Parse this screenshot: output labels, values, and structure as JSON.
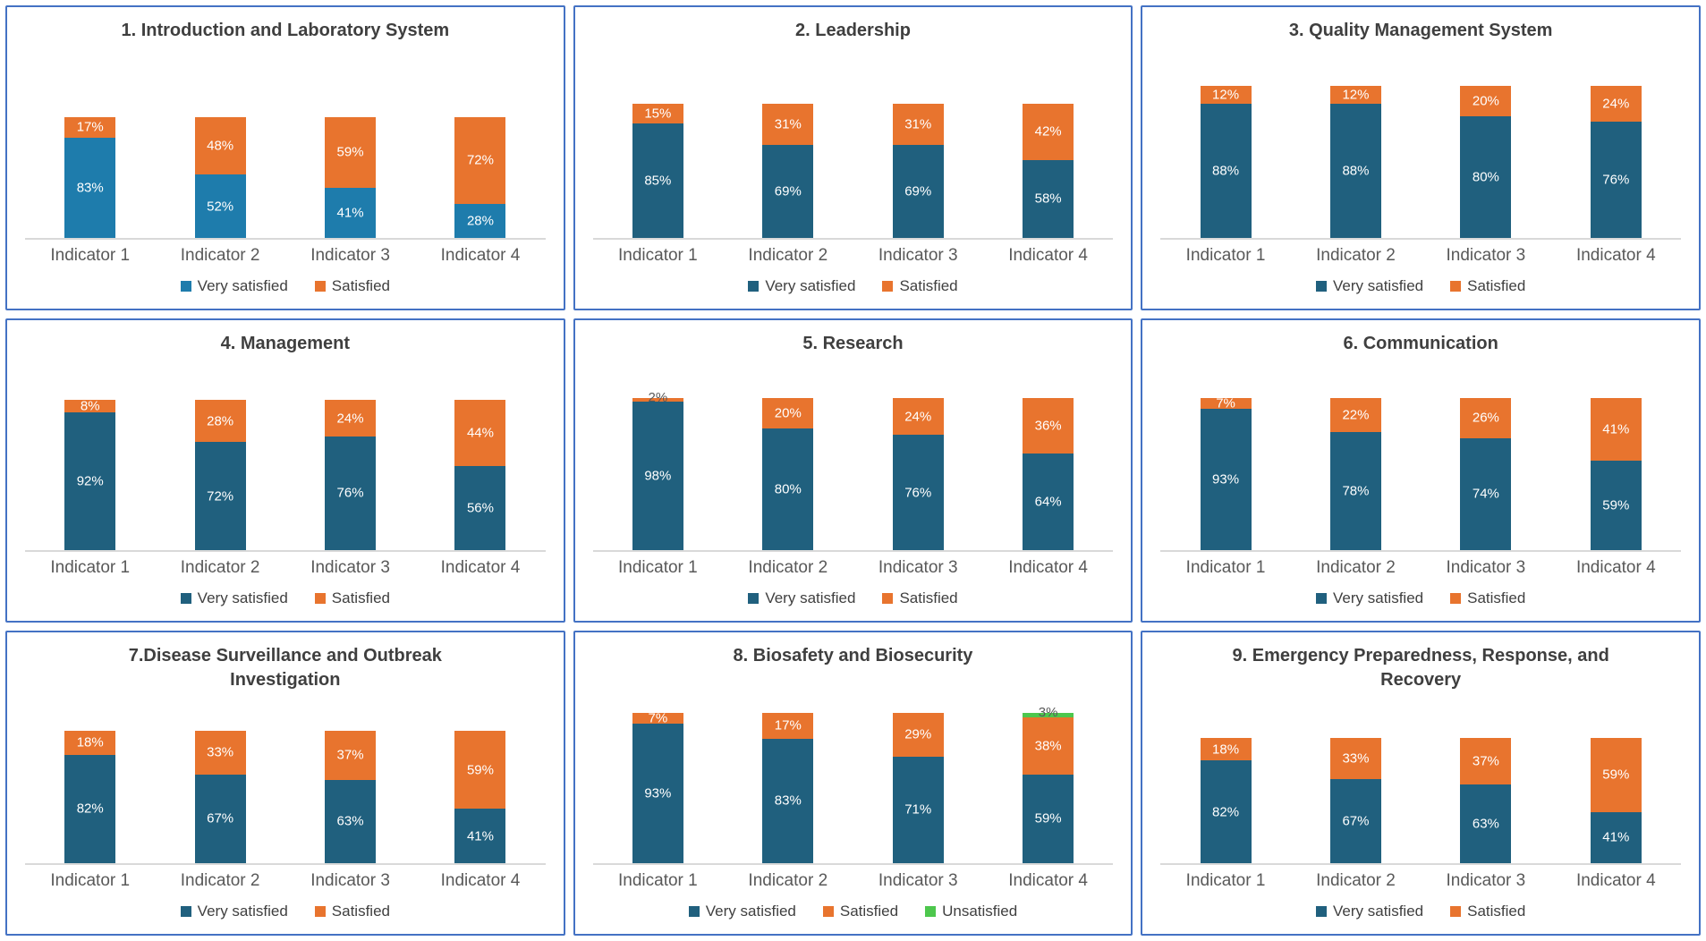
{
  "figure": {
    "description": "Satisfaction survey results per module, four indicators each",
    "legend_labels": [
      "Very satisfied",
      "Satisfied",
      "Unsatisfied"
    ],
    "colors": {
      "panel_border": "#4472C4",
      "very_satisfied_chart1": "#1E7CAC",
      "very_satisfied": "#20607E",
      "satisfied": "#E8742E",
      "unsatisfied": "#4DC74D",
      "title_text": "#3F3F3F",
      "axis_text": "#595959",
      "axis_line": "#D9D9D9",
      "data_label_light": "#FFFFFF",
      "data_label_dark": "#595959"
    }
  },
  "chart_data": [
    {
      "type": "bar",
      "stacked": true,
      "title": "1. Introduction and Laboratory System",
      "categories": [
        "Indicator 1",
        "Indicator 2",
        "Indicator 3",
        "Indicator 4"
      ],
      "series": [
        {
          "name": "Very satisfied",
          "color": "#1E7CAC",
          "values": [
            83,
            52,
            41,
            28
          ]
        },
        {
          "name": "Satisfied",
          "color": "#E8742E",
          "values": [
            17,
            48,
            59,
            72
          ]
        }
      ],
      "ylim": [
        0,
        100
      ],
      "legend_position": "bottom",
      "data_label_format": "percent",
      "grid": false
    },
    {
      "type": "bar",
      "stacked": true,
      "title": "2. Leadership",
      "categories": [
        "Indicator 1",
        "Indicator 2",
        "Indicator 3",
        "Indicator 4"
      ],
      "series": [
        {
          "name": "Very satisfied",
          "color": "#20607E",
          "values": [
            85,
            69,
            69,
            58
          ]
        },
        {
          "name": "Satisfied",
          "color": "#E8742E",
          "values": [
            15,
            31,
            31,
            42
          ]
        }
      ],
      "ylim": [
        0,
        100
      ],
      "legend_position": "bottom",
      "data_label_format": "percent",
      "grid": false
    },
    {
      "type": "bar",
      "stacked": true,
      "title": "3. Quality Management System",
      "categories": [
        "Indicator 1",
        "Indicator 2",
        "Indicator 3",
        "Indicator 4"
      ],
      "series": [
        {
          "name": "Very satisfied",
          "color": "#20607E",
          "values": [
            88,
            88,
            80,
            76
          ]
        },
        {
          "name": "Satisfied",
          "color": "#E8742E",
          "values": [
            12,
            12,
            20,
            24
          ]
        }
      ],
      "ylim": [
        0,
        100
      ],
      "legend_position": "bottom",
      "data_label_format": "percent",
      "grid": false
    },
    {
      "type": "bar",
      "stacked": true,
      "title": "4. Management",
      "categories": [
        "Indicator 1",
        "Indicator 2",
        "Indicator 3",
        "Indicator 4"
      ],
      "series": [
        {
          "name": "Very satisfied",
          "color": "#20607E",
          "values": [
            92,
            72,
            76,
            56
          ]
        },
        {
          "name": "Satisfied",
          "color": "#E8742E",
          "values": [
            8,
            28,
            24,
            44
          ]
        }
      ],
      "ylim": [
        0,
        100
      ],
      "legend_position": "bottom",
      "data_label_format": "percent",
      "grid": false
    },
    {
      "type": "bar",
      "stacked": true,
      "title": "5. Research",
      "categories": [
        "Indicator 1",
        "Indicator 2",
        "Indicator 3",
        "Indicator 4"
      ],
      "series": [
        {
          "name": "Very satisfied",
          "color": "#20607E",
          "values": [
            98,
            80,
            76,
            64
          ]
        },
        {
          "name": "Satisfied",
          "color": "#E8742E",
          "values": [
            2,
            20,
            24,
            36
          ]
        }
      ],
      "ylim": [
        0,
        100
      ],
      "legend_position": "bottom",
      "data_label_format": "percent",
      "grid": false
    },
    {
      "type": "bar",
      "stacked": true,
      "title": "6. Communication",
      "categories": [
        "Indicator 1",
        "Indicator 2",
        "Indicator 3",
        "Indicator 4"
      ],
      "series": [
        {
          "name": "Very satisfied",
          "color": "#20607E",
          "values": [
            93,
            78,
            74,
            59
          ]
        },
        {
          "name": "Satisfied",
          "color": "#E8742E",
          "values": [
            7,
            22,
            26,
            41
          ]
        }
      ],
      "ylim": [
        0,
        100
      ],
      "legend_position": "bottom",
      "data_label_format": "percent",
      "grid": false
    },
    {
      "type": "bar",
      "stacked": true,
      "title": "7.Disease Surveillance and Outbreak Investigation",
      "categories": [
        "Indicator 1",
        "Indicator 2",
        "Indicator 3",
        "Indicator 4"
      ],
      "series": [
        {
          "name": "Very satisfied",
          "color": "#20607E",
          "values": [
            82,
            67,
            63,
            41
          ]
        },
        {
          "name": "Satisfied",
          "color": "#E8742E",
          "values": [
            18,
            33,
            37,
            59
          ]
        }
      ],
      "ylim": [
        0,
        100
      ],
      "legend_position": "bottom",
      "data_label_format": "percent",
      "grid": false
    },
    {
      "type": "bar",
      "stacked": true,
      "title": "8. Biosafety and Biosecurity",
      "categories": [
        "Indicator 1",
        "Indicator 2",
        "Indicator 3",
        "Indicator 4"
      ],
      "series": [
        {
          "name": "Very satisfied",
          "color": "#20607E",
          "values": [
            93,
            83,
            71,
            59
          ]
        },
        {
          "name": "Satisfied",
          "color": "#E8742E",
          "values": [
            7,
            17,
            29,
            38
          ]
        },
        {
          "name": "Unsatisfied",
          "color": "#4DC74D",
          "values": [
            0,
            0,
            0,
            3
          ]
        }
      ],
      "ylim": [
        0,
        100
      ],
      "legend_position": "bottom",
      "data_label_format": "percent",
      "grid": false
    },
    {
      "type": "bar",
      "stacked": true,
      "title": "9. Emergency Preparedness, Response, and Recovery",
      "categories": [
        "Indicator 1",
        "Indicator 2",
        "Indicator 3",
        "Indicator 4"
      ],
      "series": [
        {
          "name": "Very satisfied",
          "color": "#20607E",
          "values": [
            82,
            67,
            63,
            41
          ]
        },
        {
          "name": "Satisfied",
          "color": "#E8742E",
          "values": [
            18,
            33,
            37,
            59
          ]
        }
      ],
      "ylim": [
        0,
        100
      ],
      "legend_position": "bottom",
      "data_label_format": "percent",
      "grid": false
    }
  ]
}
